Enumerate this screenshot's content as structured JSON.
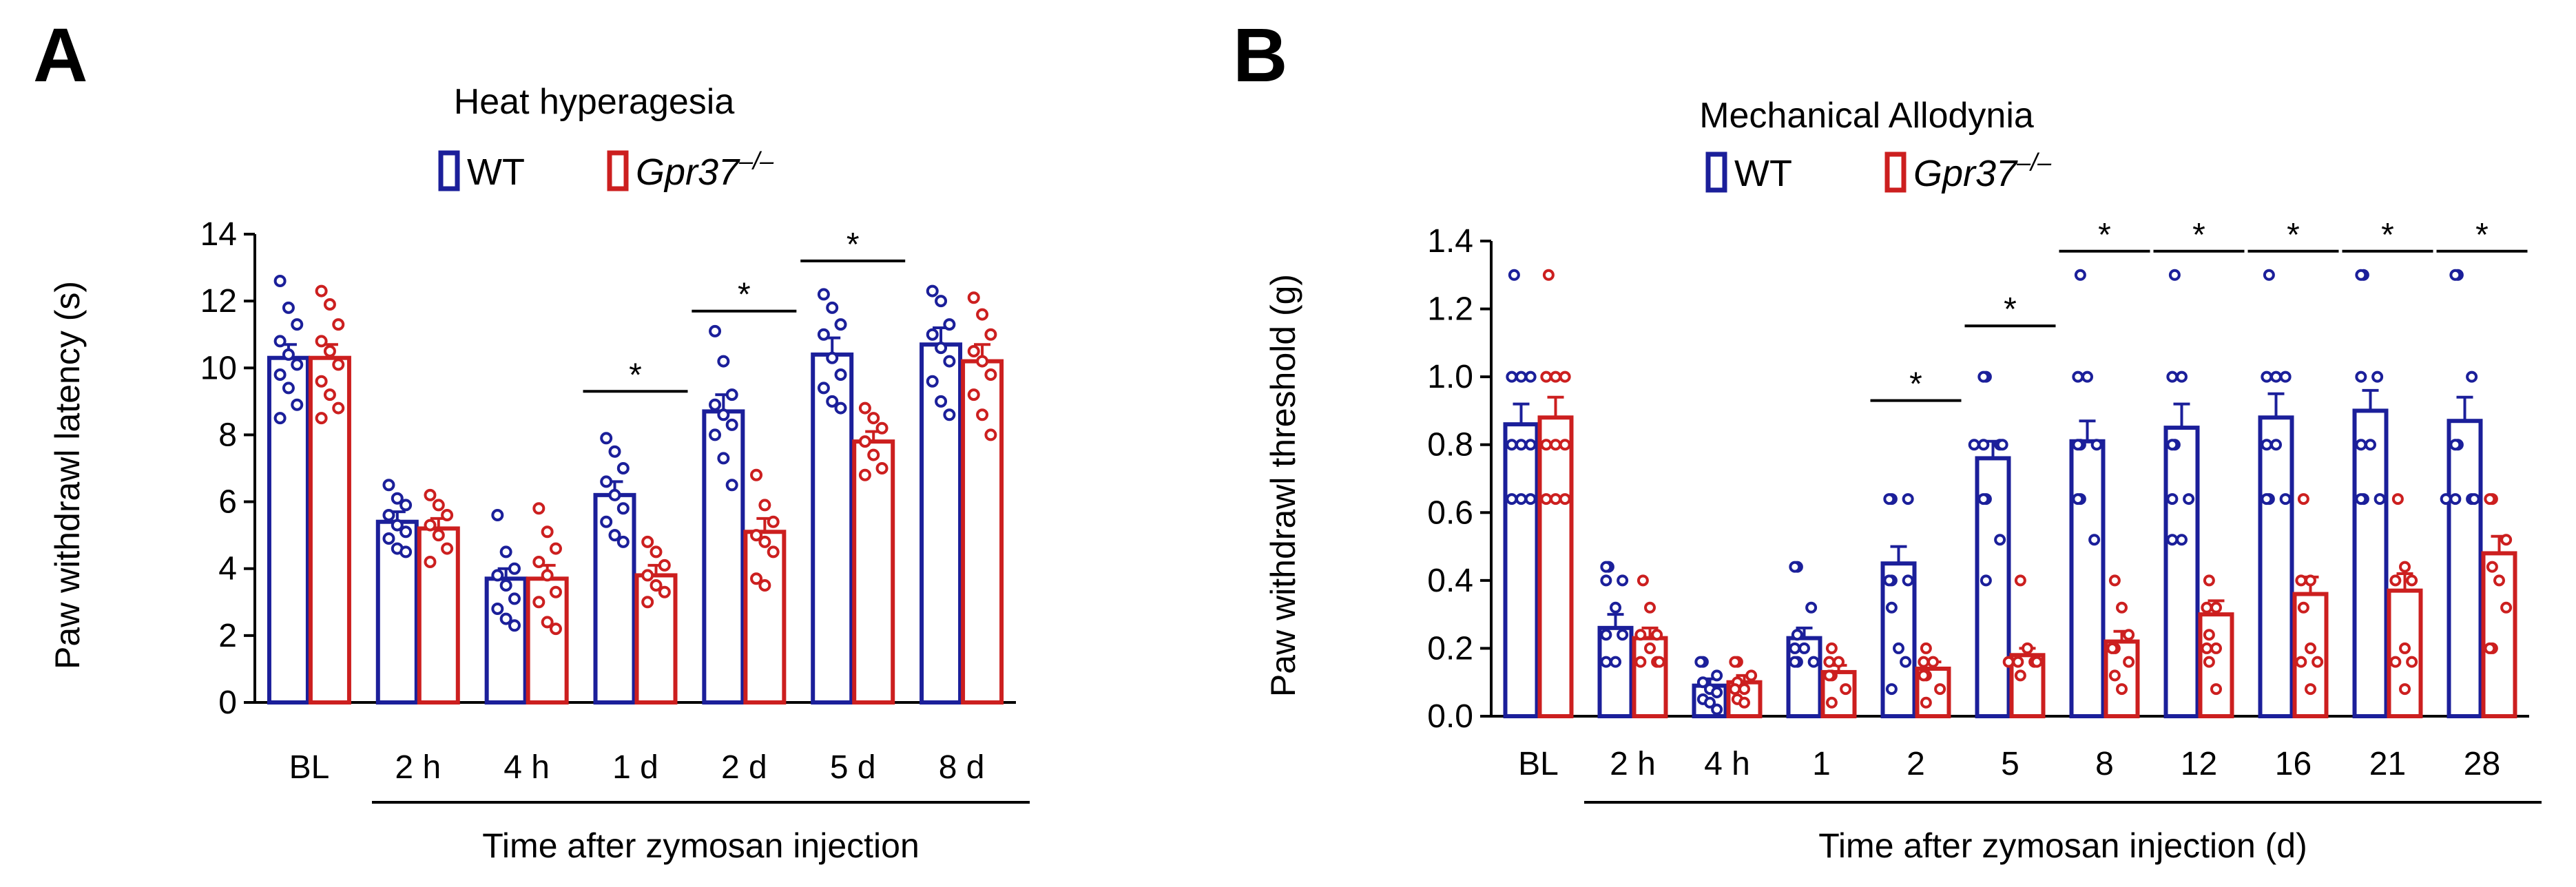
{
  "colors": {
    "wt": "#1b1f9a",
    "ko": "#cc1f1f",
    "axis": "#000000"
  },
  "chart_data": [
    {
      "panel_label": "A",
      "type": "bar",
      "title": "Heat hyperagesia",
      "legend": [
        {
          "key": "wt",
          "label": "WT"
        },
        {
          "key": "ko",
          "label": "Gpr37",
          "sup": "–/–"
        }
      ],
      "ylabel": "Paw withdrawl latency (s)",
      "xlabel": "Time after zymosan injection",
      "ylim": [
        0,
        14
      ],
      "yticks": [
        "0",
        "2",
        "4",
        "6",
        "8",
        "10",
        "12",
        "14"
      ],
      "categories": [
        "BL",
        "2 h",
        "4 h",
        "1 d",
        "2 d",
        "5 d",
        "8 d"
      ],
      "series": [
        {
          "name": "WT",
          "key": "wt",
          "values": [
            10.3,
            5.4,
            3.7,
            6.2,
            8.7,
            10.4,
            10.7
          ],
          "sem": [
            0.4,
            0.3,
            0.3,
            0.4,
            0.5,
            0.5,
            0.5
          ],
          "points": [
            [
              12.6,
              11.8,
              11.3,
              10.8,
              10.4,
              10.1,
              9.8,
              9.4,
              8.9,
              8.5
            ],
            [
              6.5,
              6.1,
              5.9,
              5.6,
              5.3,
              5.1,
              4.9,
              4.6,
              4.5
            ],
            [
              5.6,
              4.5,
              4.0,
              3.8,
              3.5,
              3.1,
              2.8,
              2.5,
              2.3
            ],
            [
              7.9,
              7.5,
              7.0,
              6.6,
              6.2,
              5.8,
              5.4,
              5.0,
              4.8
            ],
            [
              11.1,
              10.2,
              9.2,
              8.9,
              8.6,
              8.3,
              8.0,
              7.3,
              6.5
            ],
            [
              12.2,
              11.8,
              11.3,
              11.0,
              10.3,
              9.8,
              9.4,
              9.0,
              8.8
            ],
            [
              12.3,
              12.0,
              11.3,
              11.0,
              10.6,
              10.2,
              9.6,
              9.0,
              8.6
            ]
          ]
        },
        {
          "name": "Gpr37-/-",
          "key": "ko",
          "values": [
            10.3,
            5.2,
            3.7,
            3.8,
            5.1,
            7.8,
            10.2
          ],
          "sem": [
            0.4,
            0.3,
            0.4,
            0.3,
            0.4,
            0.3,
            0.5
          ],
          "points": [
            [
              12.3,
              11.9,
              11.3,
              10.8,
              10.5,
              10.1,
              9.6,
              9.2,
              8.8,
              8.5
            ],
            [
              6.2,
              5.9,
              5.6,
              5.3,
              5.0,
              4.6,
              4.2
            ],
            [
              5.8,
              5.1,
              4.6,
              4.2,
              3.8,
              3.3,
              3.0,
              2.4,
              2.2
            ],
            [
              4.8,
              4.5,
              4.1,
              3.8,
              3.5,
              3.3,
              3.0
            ],
            [
              6.8,
              5.9,
              5.4,
              5.0,
              4.8,
              4.5,
              3.7,
              3.5
            ],
            [
              8.8,
              8.5,
              8.2,
              7.8,
              7.4,
              7.0,
              6.8
            ],
            [
              12.1,
              11.6,
              11.0,
              10.5,
              10.2,
              9.8,
              9.2,
              8.6,
              8.0
            ]
          ]
        }
      ],
      "significance": [
        {
          "category": "1 d",
          "y": 9.3,
          "label": "*"
        },
        {
          "category": "2 d",
          "y": 11.7,
          "label": "*"
        },
        {
          "category": "5 d",
          "y": 13.2,
          "label": "*"
        }
      ]
    },
    {
      "panel_label": "B",
      "type": "bar",
      "title": "Mechanical  Allodynia",
      "legend": [
        {
          "key": "wt",
          "label": "WT"
        },
        {
          "key": "ko",
          "label": "Gpr37",
          "sup": "–/–"
        }
      ],
      "ylabel": "Paw withdrawl threshold (g)",
      "xlabel": "Time after zymosan injection (d)",
      "ylim": [
        0,
        1.4
      ],
      "yticks": [
        "0.0",
        "0.2",
        "0.4",
        "0.6",
        "0.8",
        "1.0",
        "1.2",
        "1.4"
      ],
      "categories": [
        "BL",
        "2 h",
        "4 h",
        "1",
        "2",
        "5",
        "8",
        "12",
        "16",
        "21",
        "28"
      ],
      "series": [
        {
          "name": "WT",
          "key": "wt",
          "values": [
            0.86,
            0.26,
            0.09,
            0.23,
            0.45,
            0.76,
            0.81,
            0.85,
            0.88,
            0.9,
            0.87
          ],
          "sem": [
            0.06,
            0.04,
            0.02,
            0.03,
            0.05,
            0.05,
            0.06,
            0.07,
            0.07,
            0.06,
            0.07
          ],
          "points": [
            [
              1.3,
              1.0,
              1.0,
              1.0,
              0.8,
              0.8,
              0.8,
              0.64,
              0.64,
              0.64
            ],
            [
              0.44,
              0.44,
              0.4,
              0.4,
              0.32,
              0.24,
              0.24,
              0.16,
              0.16
            ],
            [
              0.16,
              0.16,
              0.12,
              0.1,
              0.08,
              0.07,
              0.05,
              0.04,
              0.02
            ],
            [
              0.44,
              0.44,
              0.32,
              0.24,
              0.2,
              0.2,
              0.16,
              0.16,
              0.16
            ],
            [
              0.64,
              0.64,
              0.64,
              0.4,
              0.4,
              0.4,
              0.32,
              0.2,
              0.16,
              0.08
            ],
            [
              1.0,
              1.0,
              0.8,
              0.8,
              0.8,
              0.8,
              0.64,
              0.64,
              0.52,
              0.4
            ],
            [
              1.3,
              1.0,
              1.0,
              0.8,
              0.8,
              0.8,
              0.64,
              0.64,
              0.52
            ],
            [
              1.3,
              1.0,
              1.0,
              0.8,
              0.8,
              0.64,
              0.64,
              0.52,
              0.52
            ],
            [
              1.3,
              1.0,
              1.0,
              1.0,
              0.8,
              0.8,
              0.64,
              0.64,
              0.64
            ],
            [
              1.3,
              1.3,
              1.0,
              1.0,
              0.8,
              0.8,
              0.64,
              0.64,
              0.64
            ],
            [
              1.3,
              1.3,
              1.0,
              0.8,
              0.8,
              0.64,
              0.64,
              0.64,
              0.64
            ]
          ]
        },
        {
          "name": "Gpr37-/-",
          "key": "ko",
          "values": [
            0.88,
            0.23,
            0.1,
            0.13,
            0.14,
            0.18,
            0.22,
            0.3,
            0.36,
            0.37,
            0.48
          ],
          "sem": [
            0.06,
            0.03,
            0.02,
            0.02,
            0.02,
            0.02,
            0.03,
            0.04,
            0.05,
            0.05,
            0.05
          ],
          "points": [
            [
              1.3,
              1.0,
              1.0,
              1.0,
              0.8,
              0.8,
              0.8,
              0.64,
              0.64,
              0.64
            ],
            [
              0.4,
              0.32,
              0.24,
              0.24,
              0.2,
              0.16,
              0.16,
              0.16
            ],
            [
              0.16,
              0.16,
              0.12,
              0.1,
              0.08,
              0.08,
              0.05,
              0.04
            ],
            [
              0.2,
              0.16,
              0.16,
              0.12,
              0.12,
              0.08,
              0.04
            ],
            [
              0.2,
              0.16,
              0.16,
              0.12,
              0.12,
              0.08,
              0.04
            ],
            [
              0.4,
              0.2,
              0.16,
              0.16,
              0.16,
              0.16,
              0.12
            ],
            [
              0.4,
              0.32,
              0.24,
              0.2,
              0.2,
              0.16,
              0.12,
              0.08
            ],
            [
              0.4,
              0.32,
              0.32,
              0.24,
              0.2,
              0.2,
              0.16,
              0.08
            ],
            [
              0.64,
              0.4,
              0.4,
              0.32,
              0.2,
              0.16,
              0.16,
              0.08
            ],
            [
              0.64,
              0.44,
              0.4,
              0.4,
              0.2,
              0.16,
              0.16,
              0.08
            ],
            [
              0.64,
              0.64,
              0.52,
              0.44,
              0.4,
              0.32,
              0.2,
              0.2
            ]
          ]
        }
      ],
      "significance": [
        {
          "category": "2",
          "y": 0.93,
          "label": "*"
        },
        {
          "category": "5",
          "y": 1.15,
          "label": "*"
        },
        {
          "category": "8",
          "y": 1.37,
          "label": "*"
        },
        {
          "category": "12",
          "y": 1.37,
          "label": "*"
        },
        {
          "category": "16",
          "y": 1.37,
          "label": "*"
        },
        {
          "category": "21",
          "y": 1.37,
          "label": "*"
        },
        {
          "category": "28",
          "y": 1.37,
          "label": "*"
        }
      ]
    }
  ]
}
